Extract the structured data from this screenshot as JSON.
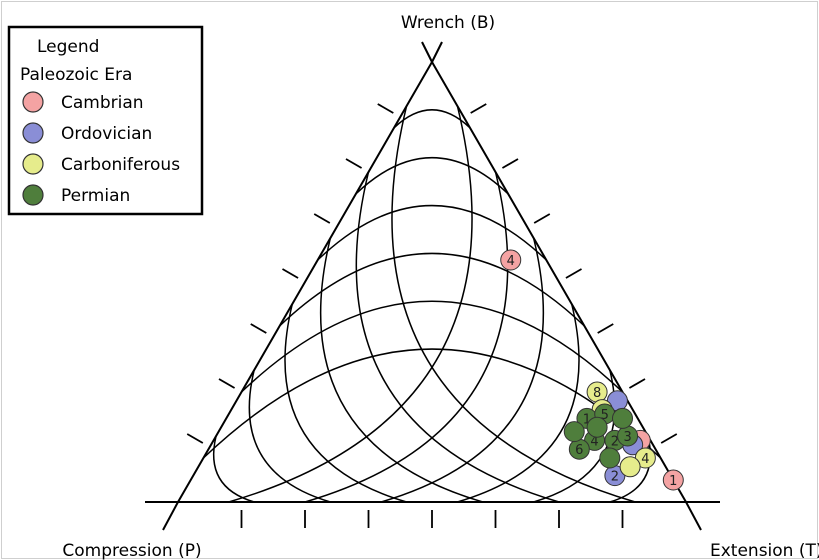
{
  "chart_data": {
    "type": "scatter",
    "subtype": "ternary",
    "title": "",
    "axes": {
      "top": "Wrench (B)",
      "left": "Compression (P)",
      "right": "Extension (T)"
    },
    "legend": {
      "title": "Legend",
      "subtitle": "Paleozoic Era",
      "placement": "top-left",
      "items": [
        {
          "name": "Cambrian",
          "color": "#f4a3a3"
        },
        {
          "name": "Ordovician",
          "color": "#8a8ed6"
        },
        {
          "name": "Carboniferous",
          "color": "#e6ec8c"
        },
        {
          "name": "Permian",
          "color": "#4f7e3c"
        }
      ]
    },
    "grid": true,
    "series": [
      {
        "name": "Cambrian",
        "color": "#f4a3a3",
        "points": [
          {
            "label": "4",
            "P": 0.07,
            "B": 0.55,
            "T": 0.38
          },
          {
            "label": "1",
            "P": 0.0,
            "B": 0.05,
            "T": 0.95
          },
          {
            "label": "",
            "P": 0.02,
            "B": 0.14,
            "T": 0.84
          }
        ]
      },
      {
        "name": "Ordovician",
        "color": "#8a8ed6",
        "points": [
          {
            "label": "2",
            "P": 0.11,
            "B": 0.06,
            "T": 0.83
          },
          {
            "label": "",
            "P": 0.02,
            "B": 0.23,
            "T": 0.75
          },
          {
            "label": "",
            "P": 0.04,
            "B": 0.13,
            "T": 0.83
          }
        ]
      },
      {
        "name": "Carboniferous",
        "color": "#e6ec8c",
        "points": [
          {
            "label": "8",
            "P": 0.05,
            "B": 0.25,
            "T": 0.7
          },
          {
            "label": "4",
            "P": 0.03,
            "B": 0.1,
            "T": 0.87
          },
          {
            "label": "",
            "P": 0.06,
            "B": 0.21,
            "T": 0.73
          },
          {
            "label": "",
            "P": 0.07,
            "B": 0.08,
            "T": 0.85
          }
        ]
      },
      {
        "name": "Permian",
        "color": "#4f7e3c",
        "points": [
          {
            "label": "1",
            "P": 0.1,
            "B": 0.19,
            "T": 0.71
          },
          {
            "label": "5",
            "P": 0.06,
            "B": 0.2,
            "T": 0.74
          },
          {
            "label": "4",
            "P": 0.11,
            "B": 0.14,
            "T": 0.75
          },
          {
            "label": "2",
            "P": 0.07,
            "B": 0.14,
            "T": 0.79
          },
          {
            "label": "6",
            "P": 0.15,
            "B": 0.12,
            "T": 0.73
          },
          {
            "label": "3",
            "P": 0.04,
            "B": 0.15,
            "T": 0.81
          },
          {
            "label": "",
            "P": 0.14,
            "B": 0.16,
            "T": 0.7
          },
          {
            "label": "",
            "P": 0.03,
            "B": 0.19,
            "T": 0.78
          },
          {
            "label": "",
            "P": 0.1,
            "B": 0.1,
            "T": 0.8
          },
          {
            "label": "",
            "P": 0.09,
            "B": 0.17,
            "T": 0.74
          }
        ]
      }
    ]
  }
}
